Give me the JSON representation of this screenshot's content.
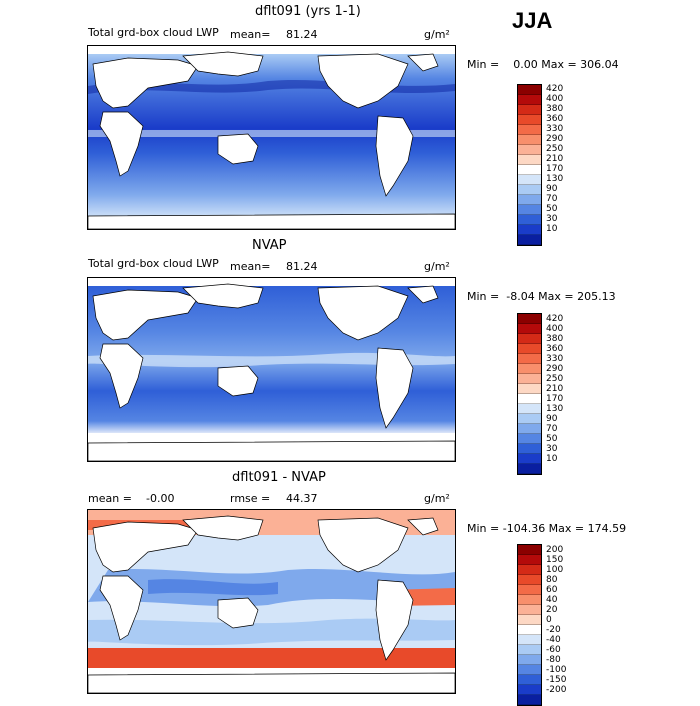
{
  "season": "JJA",
  "units": "g/m²",
  "panels": [
    {
      "title": "dflt091 (yrs 1-1)",
      "left_label": "Total grd-box cloud LWP",
      "mean_label": "mean=",
      "mean_value": "81.24",
      "range_text": "Min =    0.00 Max = 306.04",
      "colorbar_labels": [
        "420",
        "400",
        "380",
        "360",
        "330",
        "290",
        "250",
        "210",
        "170",
        "130",
        "90",
        "70",
        "50",
        "30",
        "10"
      ],
      "colorbar_colors": [
        "#8b0000",
        "#b40a0a",
        "#d42a17",
        "#e84a2a",
        "#f36b48",
        "#f88f6c",
        "#fbb196",
        "#fdd8c4",
        "#ffffff",
        "#d4e5f9",
        "#aacbf4",
        "#7fa9ec",
        "#5585e3",
        "#2f5fd7",
        "#1a3cc9",
        "#0a1fa0"
      ],
      "data_min": 0.0,
      "data_max": 306.04
    },
    {
      "title": "NVAP",
      "left_label": "Total grd-box cloud LWP",
      "mean_label": "mean=",
      "mean_value": "81.24",
      "range_text": "Min =  -8.04 Max = 205.13",
      "colorbar_labels": [
        "420",
        "400",
        "380",
        "360",
        "330",
        "290",
        "250",
        "210",
        "170",
        "130",
        "90",
        "70",
        "50",
        "30",
        "10"
      ],
      "colorbar_colors": [
        "#8b0000",
        "#b40a0a",
        "#d42a17",
        "#e84a2a",
        "#f36b48",
        "#f88f6c",
        "#fbb196",
        "#fdd8c4",
        "#ffffff",
        "#d4e5f9",
        "#aacbf4",
        "#7fa9ec",
        "#5585e3",
        "#2f5fd7",
        "#1a3cc9",
        "#0a1fa0"
      ],
      "data_min": -8.04,
      "data_max": 205.13
    },
    {
      "title": "dflt091 - NVAP",
      "left_label": "mean =",
      "left_value": "-0.00",
      "rmse_label": "rmse =",
      "rmse_value": "44.37",
      "range_text": "Min = -104.36 Max = 174.59",
      "colorbar_labels": [
        "200",
        "150",
        "100",
        "80",
        "60",
        "40",
        "20",
        "0",
        "-20",
        "-40",
        "-60",
        "-80",
        "-100",
        "-150",
        "-200"
      ],
      "colorbar_colors": [
        "#8b0000",
        "#b40a0a",
        "#d42a17",
        "#e84a2a",
        "#f36b48",
        "#f88f6c",
        "#fbb196",
        "#fdd8c4",
        "#ffffff",
        "#d4e5f9",
        "#aacbf4",
        "#7fa9ec",
        "#5585e3",
        "#2f5fd7",
        "#1a3cc9",
        "#0a1fa0"
      ],
      "data_min": -104.36,
      "data_max": 174.59
    }
  ]
}
